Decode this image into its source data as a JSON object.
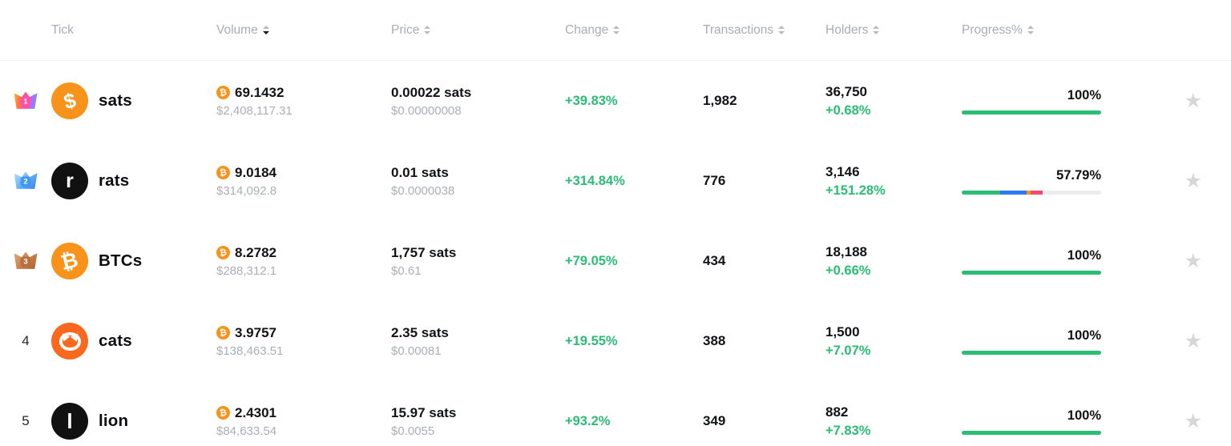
{
  "colors": {
    "positive_green": "#2abd74",
    "bitcoin_orange": "#f7931a",
    "bar_blue": "#2f78f3",
    "bar_orange": "#f7931a",
    "bar_red": "#ef4e6e",
    "progress_track": "#ededee",
    "star_gray": "#d7d7d9"
  },
  "icons": {
    "star": "★",
    "bitcoin": "₿"
  },
  "table": {
    "columns": [
      {
        "label": "Tick",
        "sortable": false
      },
      {
        "label": "Volume",
        "sortable": true,
        "sort": "desc"
      },
      {
        "label": "Price",
        "sortable": true,
        "sort": "none"
      },
      {
        "label": "Change",
        "sortable": true,
        "sort": "none"
      },
      {
        "label": "Transactions",
        "sortable": true,
        "sort": "none"
      },
      {
        "label": "Holders",
        "sortable": true,
        "sort": "none"
      },
      {
        "label": "Progress%",
        "sortable": true,
        "sort": "none"
      }
    ],
    "rows": [
      {
        "rank": "1",
        "rank_medal": "rainbow",
        "tick": "sats",
        "icon_glyph": "$",
        "icon_bg": "#f7931a",
        "volume_btc": "69.1432",
        "volume_usd": "$2,408,117.31",
        "price": "0.00022 sats",
        "price_usd": "$0.00000008",
        "change": "+39.83%",
        "transactions": "1,982",
        "holders": "36,750",
        "holders_change": "+0.68%",
        "progress_label": "100%",
        "progress_segments": [
          {
            "color": "#2abd74",
            "pct": 100
          }
        ]
      },
      {
        "rank": "2",
        "rank_medal": "blue",
        "tick": "rats",
        "icon_glyph": "r",
        "icon_bg": "#111111",
        "volume_btc": "9.0184",
        "volume_usd": "$314,092.8",
        "price": "0.01 sats",
        "price_usd": "$0.0000038",
        "change": "+314.84%",
        "transactions": "776",
        "holders": "3,146",
        "holders_change": "+151.28%",
        "progress_label": "57.79%",
        "progress_segments": [
          {
            "color": "#2abd74",
            "pct": 27.6
          },
          {
            "color": "#2f78f3",
            "pct": 19.0
          },
          {
            "color": "#f7931a",
            "pct": 2.9
          },
          {
            "color": "#ef4e6e",
            "pct": 8.3
          }
        ]
      },
      {
        "rank": "3",
        "rank_medal": "bronze",
        "tick": "BTCs",
        "icon_glyph": "₿",
        "icon_bg": "#f7931a",
        "volume_btc": "8.2782",
        "volume_usd": "$288,312.1",
        "price": "1,757 sats",
        "price_usd": "$0.61",
        "change": "+79.05%",
        "transactions": "434",
        "holders": "18,188",
        "holders_change": "+0.66%",
        "progress_label": "100%",
        "progress_segments": [
          {
            "color": "#2abd74",
            "pct": 100
          }
        ]
      },
      {
        "rank": "4",
        "rank_medal": "none",
        "tick": "cats",
        "icon_glyph": "",
        "icon_shape": "cat-face",
        "icon_bg": "#f9681f",
        "volume_btc": "3.9757",
        "volume_usd": "$138,463.51",
        "price": "2.35 sats",
        "price_usd": "$0.00081",
        "change": "+19.55%",
        "transactions": "388",
        "holders": "1,500",
        "holders_change": "+7.07%",
        "progress_label": "100%",
        "progress_segments": [
          {
            "color": "#2abd74",
            "pct": 100
          }
        ]
      },
      {
        "rank": "5",
        "rank_medal": "none",
        "tick": "lion",
        "icon_glyph": "l",
        "icon_bg": "#111111",
        "volume_btc": "2.4301",
        "volume_usd": "$84,633.54",
        "price": "15.97 sats",
        "price_usd": "$0.0055",
        "change": "+93.2%",
        "transactions": "349",
        "holders": "882",
        "holders_change": "+7.83%",
        "progress_label": "100%",
        "progress_segments": [
          {
            "color": "#2abd74",
            "pct": 100
          }
        ]
      }
    ]
  }
}
